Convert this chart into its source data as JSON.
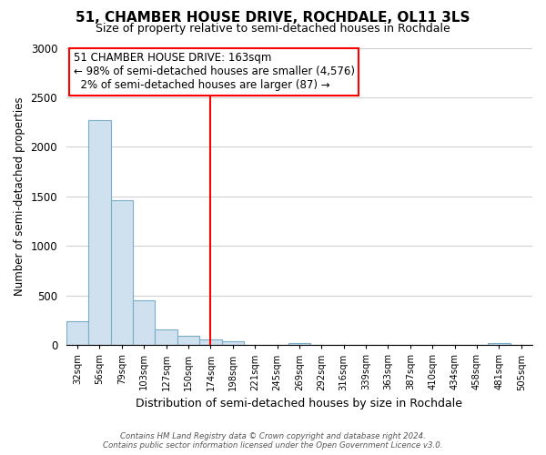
{
  "title": "51, CHAMBER HOUSE DRIVE, ROCHDALE, OL11 3LS",
  "subtitle": "Size of property relative to semi-detached houses in Rochdale",
  "xlabel": "Distribution of semi-detached houses by size in Rochdale",
  "ylabel": "Number of semi-detached properties",
  "bin_labels": [
    "32sqm",
    "56sqm",
    "79sqm",
    "103sqm",
    "127sqm",
    "150sqm",
    "174sqm",
    "198sqm",
    "221sqm",
    "245sqm",
    "269sqm",
    "292sqm",
    "316sqm",
    "339sqm",
    "363sqm",
    "387sqm",
    "410sqm",
    "434sqm",
    "458sqm",
    "481sqm",
    "505sqm"
  ],
  "bar_heights": [
    245,
    2270,
    1460,
    455,
    155,
    95,
    55,
    35,
    0,
    0,
    25,
    0,
    0,
    0,
    0,
    0,
    0,
    0,
    0,
    25,
    0
  ],
  "bar_color": "#cfe0ef",
  "bar_edge_color": "#7aaec8",
  "vline_x": 6.0,
  "vline_color": "red",
  "annotation_title": "51 CHAMBER HOUSE DRIVE: 163sqm",
  "annotation_line1": "← 98% of semi-detached houses are smaller (4,576)",
  "annotation_line2": "  2% of semi-detached houses are larger (87) →",
  "annotation_box_color": "white",
  "annotation_box_edge": "red",
  "ylim": [
    0,
    3000
  ],
  "yticks": [
    0,
    500,
    1000,
    1500,
    2000,
    2500,
    3000
  ],
  "footer_line1": "Contains HM Land Registry data © Crown copyright and database right 2024.",
  "footer_line2": "Contains public sector information licensed under the Open Government Licence v3.0.",
  "background_color": "white",
  "grid_color": "#d0d0d0",
  "title_fontsize": 11,
  "subtitle_fontsize": 9
}
